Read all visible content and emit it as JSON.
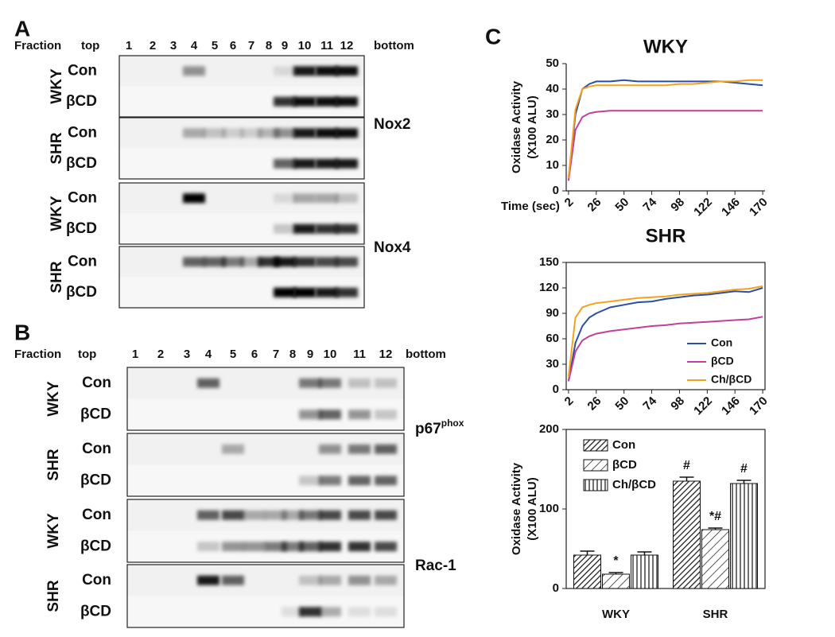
{
  "panel_a": {
    "label": "A",
    "header": {
      "fraction": "Fraction",
      "top": "top",
      "lanes": [
        "1",
        "2",
        "3",
        "4",
        "5",
        "6",
        "7",
        "8",
        "9",
        "10",
        "11",
        "12"
      ],
      "bottom": "bottom"
    },
    "blots": [
      {
        "strain": "WKY",
        "rows": [
          "Con",
          "βCD"
        ]
      },
      {
        "strain": "SHR",
        "rows": [
          "Con",
          "βCD"
        ]
      },
      {
        "strain": "WKY",
        "rows": [
          "Con",
          "βCD"
        ]
      },
      {
        "strain": "SHR",
        "rows": [
          "Con",
          "βCD"
        ]
      }
    ],
    "proteins": [
      {
        "text": "Nox2"
      },
      {
        "text": "Nox4"
      }
    ]
  },
  "panel_b": {
    "label": "B",
    "header": {
      "fraction": "Fraction",
      "top": "top",
      "lanes": [
        "1",
        "2",
        "3",
        "4",
        "5",
        "6",
        "7",
        "8",
        "9",
        "10",
        "11",
        "12"
      ],
      "bottom": "bottom"
    },
    "blots": [
      {
        "strain": "WKY",
        "rows": [
          "Con",
          "βCD"
        ]
      },
      {
        "strain": "SHR",
        "rows": [
          "Con",
          "βCD"
        ]
      },
      {
        "strain": "WKY",
        "rows": [
          "Con",
          "βCD"
        ]
      },
      {
        "strain": "SHR",
        "rows": [
          "Con",
          "βCD"
        ]
      }
    ],
    "proteins": [
      {
        "text": "p67",
        "sup": "phox"
      },
      {
        "text": "Rac-1"
      }
    ]
  },
  "panel_c": {
    "label": "C"
  },
  "chart_data": [
    {
      "type": "line",
      "title": "WKY",
      "y_label": [
        "Oxidase Activity",
        "(X100 ALU)"
      ],
      "x_label": "Time (sec)",
      "x": [
        2,
        8,
        14,
        20,
        26,
        38,
        50,
        62,
        74,
        86,
        98,
        110,
        122,
        134,
        146,
        158,
        170
      ],
      "xlim": [
        0,
        172
      ],
      "xticks": [
        2,
        26,
        50,
        74,
        98,
        122,
        146,
        170
      ],
      "ylim": [
        0,
        50
      ],
      "yticks": [
        0,
        10,
        20,
        30,
        40,
        50
      ],
      "series": [
        {
          "color": "#2b4fa6",
          "values": [
            5,
            30,
            40,
            42,
            43,
            43,
            43.5,
            43,
            43,
            43,
            43,
            43,
            43,
            43,
            42.5,
            42,
            41.5
          ]
        },
        {
          "color": "#c0409a",
          "values": [
            4,
            24,
            29,
            30.5,
            31,
            31.5,
            31.5,
            31.5,
            31.5,
            31.5,
            31.5,
            31.5,
            31.5,
            31.5,
            31.5,
            31.5,
            31.5
          ]
        },
        {
          "color": "#f5a21b",
          "values": [
            5,
            32,
            40,
            41,
            41.5,
            41.5,
            41.5,
            41.5,
            41.5,
            41.5,
            42,
            42,
            42.5,
            43,
            43,
            43.5,
            43.5
          ]
        }
      ]
    },
    {
      "type": "line",
      "title": "SHR",
      "x": [
        2,
        8,
        14,
        20,
        26,
        38,
        50,
        62,
        74,
        86,
        98,
        110,
        122,
        134,
        146,
        158,
        170
      ],
      "xlim": [
        0,
        172
      ],
      "xticks": [
        2,
        26,
        50,
        74,
        98,
        122,
        146,
        170
      ],
      "ylim": [
        0,
        150
      ],
      "yticks": [
        0,
        30,
        60,
        90,
        120,
        150
      ],
      "legend": "lower right",
      "series": [
        {
          "name": "Con",
          "color": "#2b4fa6",
          "values": [
            10,
            55,
            75,
            85,
            90,
            97,
            100,
            103,
            104,
            107,
            109,
            111,
            112,
            114,
            116,
            115,
            120
          ]
        },
        {
          "name": "βCD",
          "color": "#c0409a",
          "values": [
            10,
            45,
            58,
            63,
            66,
            69,
            71,
            73,
            75,
            76,
            78,
            79,
            80,
            81,
            82,
            83,
            86
          ]
        },
        {
          "name": "Ch/βCD",
          "color": "#f5a21b",
          "values": [
            15,
            85,
            97,
            100,
            102,
            104,
            106,
            108,
            109,
            110,
            112,
            113,
            114,
            116,
            118,
            119,
            122
          ]
        }
      ]
    },
    {
      "type": "bar",
      "y_label": [
        "Oxidase Activity",
        "(X100 ALU)"
      ],
      "categories": [
        "WKY",
        "SHR"
      ],
      "ylim": [
        0,
        200
      ],
      "yticks": [
        0,
        100,
        200
      ],
      "legend": "upper left",
      "series": [
        {
          "name": "Con",
          "hatch": "dense-diagonal",
          "values": [
            42,
            135
          ],
          "errors": [
            5,
            5
          ],
          "annotations": [
            null,
            "#"
          ]
        },
        {
          "name": "βCD",
          "hatch": "diagonal",
          "values": [
            18,
            74
          ],
          "errors": [
            2,
            2
          ],
          "annotations": [
            "*",
            "*#"
          ]
        },
        {
          "name": "Ch/βCD",
          "hatch": "vertical",
          "values": [
            42,
            132
          ],
          "errors": [
            4,
            4
          ],
          "annotations": [
            null,
            "#"
          ]
        }
      ]
    }
  ]
}
